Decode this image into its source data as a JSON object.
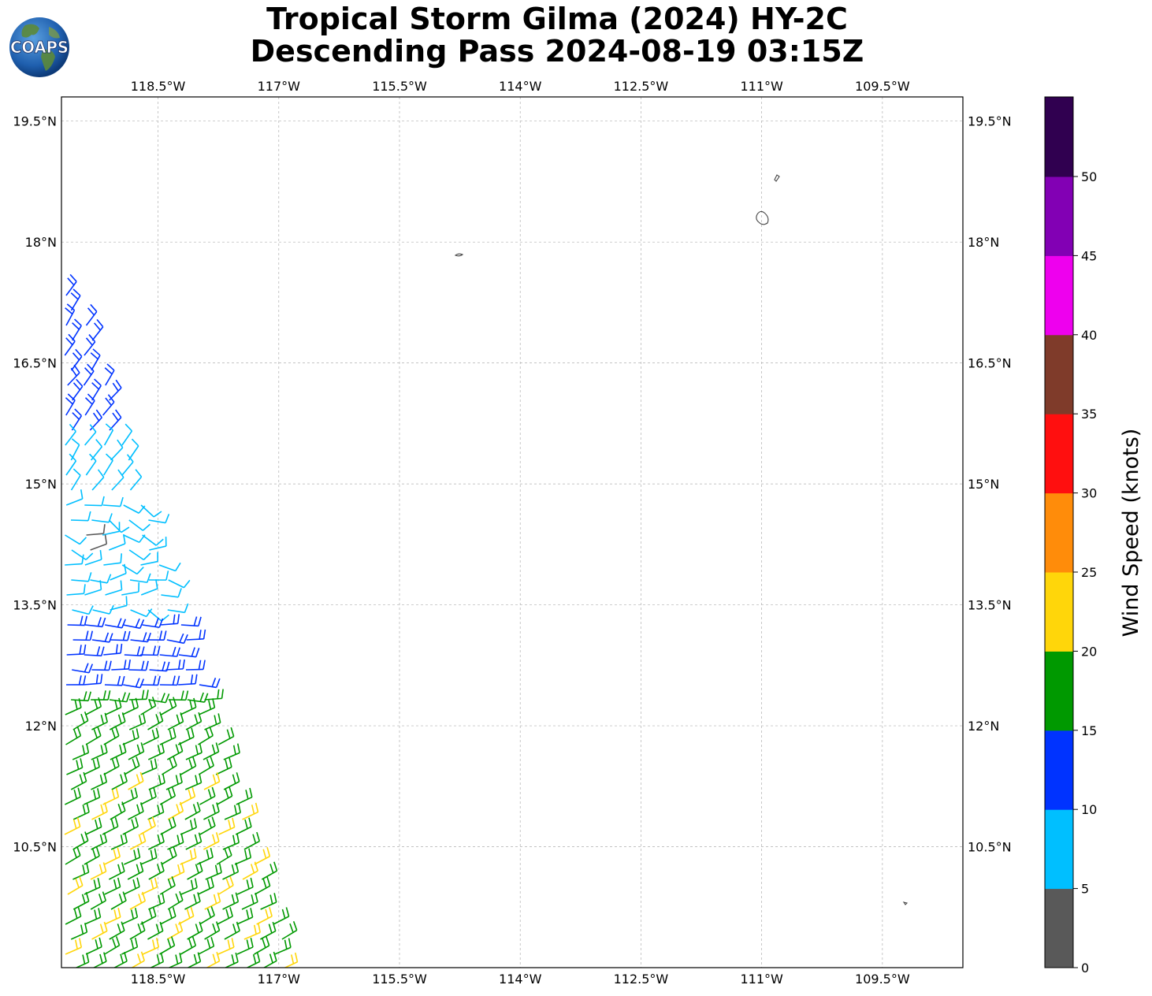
{
  "title": {
    "line1": "Tropical Storm Gilma (2024) HY-2C",
    "line2": "Descending Pass 2024-08-19 03:15Z"
  },
  "logo": {
    "text": "COAPS",
    "icon": "earth-globe-icon"
  },
  "map": {
    "projection": "PlateCarree",
    "lon_range": [
      -119.7,
      -108.5
    ],
    "lat_range": [
      9.0,
      19.8
    ],
    "lon_ticks": [
      "118.5°W",
      "117°W",
      "115.5°W",
      "114°W",
      "112.5°W",
      "111°W",
      "109.5°W"
    ],
    "lon_tick_values": [
      -118.5,
      -117,
      -115.5,
      -114,
      -112.5,
      -111,
      -109.5
    ],
    "lat_ticks": [
      "19.5°N",
      "18°N",
      "16.5°N",
      "15°N",
      "13.5°N",
      "12°N",
      "10.5°N"
    ],
    "lat_tick_values": [
      19.5,
      18,
      16.5,
      15,
      13.5,
      12,
      10.5
    ],
    "gridlines": true,
    "islands": [
      "Isla San Benedicto",
      "Isla Socorro",
      "Clarion Island",
      "Clipperton Island"
    ]
  },
  "colorbar": {
    "label": "Wind Speed (knots)",
    "ticks": [
      "0",
      "5",
      "10",
      "15",
      "20",
      "25",
      "30",
      "35",
      "40",
      "45",
      "50"
    ],
    "colors": [
      "#595959",
      "#00bfff",
      "#0033ff",
      "#009900",
      "#ffd60a",
      "#ff8c0a",
      "#ff0f0f",
      "#7f3b2a",
      "#ee00ee",
      "#8200b4",
      "#300050"
    ]
  }
}
